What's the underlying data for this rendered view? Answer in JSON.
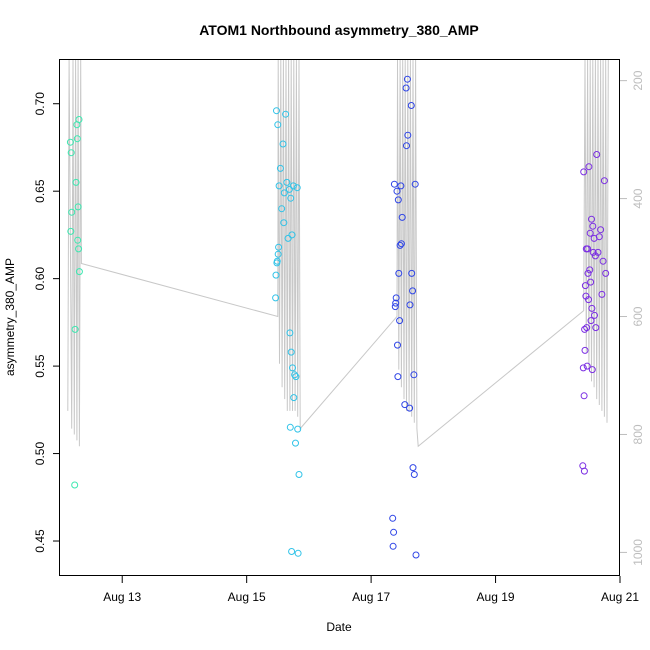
{
  "chart_data": {
    "type": "scatter",
    "title": "ATOM1 Northbound asymmetry_380_AMP",
    "xlabel": "Date",
    "ylabel": "asymmetry_380_AMP",
    "x_unit": "date (2012)",
    "xlim": [
      "2012-08-12",
      "2012-08-21"
    ],
    "x_ticks": [
      "Aug 13",
      "Aug 15",
      "Aug 17",
      "Aug 19",
      "Aug 21"
    ],
    "ylim": [
      0.43,
      0.725
    ],
    "y_ticks": [
      0.45,
      0.5,
      0.55,
      0.6,
      0.65,
      0.7
    ],
    "y2lim": [
      1040,
      165
    ],
    "y2_ticks": [
      200,
      400,
      600,
      800,
      1000
    ],
    "grid": false,
    "legend": "none",
    "series": [
      {
        "color": "#3ce8b0",
        "points": [
          [
            "2012-08-12 04:00",
            0.678
          ],
          [
            "2012-08-12 04:20",
            0.672
          ],
          [
            "2012-08-12 04:30",
            0.638
          ],
          [
            "2012-08-12 04:10",
            0.627
          ],
          [
            "2012-08-12 06:10",
            0.655
          ],
          [
            "2012-08-12 06:30",
            0.688
          ],
          [
            "2012-08-12 06:40",
            0.68
          ],
          [
            "2012-08-12 07:20",
            0.691
          ],
          [
            "2012-08-12 07:00",
            0.641
          ],
          [
            "2012-08-12 06:50",
            0.622
          ],
          [
            "2012-08-12 07:10",
            0.617
          ],
          [
            "2012-08-12 07:30",
            0.604
          ],
          [
            "2012-08-12 05:50",
            0.571
          ],
          [
            "2012-08-12 05:40",
            0.482
          ]
        ]
      },
      {
        "color": "#31c3e8",
        "points": [
          [
            "2012-08-15 11:30",
            0.696
          ],
          [
            "2012-08-15 12:00",
            0.688
          ],
          [
            "2012-08-15 15:00",
            0.694
          ],
          [
            "2012-08-15 14:00",
            0.677
          ],
          [
            "2012-08-15 13:00",
            0.663
          ],
          [
            "2012-08-15 12:30",
            0.653
          ],
          [
            "2012-08-15 15:30",
            0.655
          ],
          [
            "2012-08-15 16:30",
            0.651
          ],
          [
            "2012-08-15 18:00",
            0.653
          ],
          [
            "2012-08-15 19:30",
            0.652
          ],
          [
            "2012-08-15 14:30",
            0.649
          ],
          [
            "2012-08-15 17:00",
            0.646
          ],
          [
            "2012-08-15 13:30",
            0.64
          ],
          [
            "2012-08-15 14:20",
            0.632
          ],
          [
            "2012-08-15 17:30",
            0.625
          ],
          [
            "2012-08-15 16:00",
            0.623
          ],
          [
            "2012-08-15 12:20",
            0.618
          ],
          [
            "2012-08-15 12:10",
            0.614
          ],
          [
            "2012-08-15 11:50",
            0.61
          ],
          [
            "2012-08-15 11:40",
            0.609
          ],
          [
            "2012-08-15 11:20",
            0.602
          ],
          [
            "2012-08-15 11:10",
            0.589
          ],
          [
            "2012-08-15 16:40",
            0.569
          ],
          [
            "2012-08-15 17:10",
            0.558
          ],
          [
            "2012-08-15 17:40",
            0.549
          ],
          [
            "2012-08-15 19:00",
            0.544
          ],
          [
            "2012-08-15 18:30",
            0.545
          ],
          [
            "2012-08-15 18:10",
            0.532
          ],
          [
            "2012-08-15 16:50",
            0.515
          ],
          [
            "2012-08-15 19:40",
            0.514
          ],
          [
            "2012-08-15 18:50",
            0.506
          ],
          [
            "2012-08-15 20:10",
            0.488
          ],
          [
            "2012-08-15 17:20",
            0.444
          ],
          [
            "2012-08-15 19:50",
            0.443
          ]
        ]
      },
      {
        "color": "#2f45e6",
        "points": [
          [
            "2012-08-17 14:00",
            0.714
          ],
          [
            "2012-08-17 13:30",
            0.709
          ],
          [
            "2012-08-17 15:30",
            0.699
          ],
          [
            "2012-08-17 14:10",
            0.682
          ],
          [
            "2012-08-17 13:40",
            0.676
          ],
          [
            "2012-08-17 09:00",
            0.654
          ],
          [
            "2012-08-17 11:30",
            0.653
          ],
          [
            "2012-08-17 17:00",
            0.654
          ],
          [
            "2012-08-17 10:00",
            0.65
          ],
          [
            "2012-08-17 10:30",
            0.645
          ],
          [
            "2012-08-17 12:00",
            0.635
          ],
          [
            "2012-08-17 11:40",
            0.62
          ],
          [
            "2012-08-17 11:10",
            0.619
          ],
          [
            "2012-08-17 10:40",
            0.603
          ],
          [
            "2012-08-17 15:40",
            0.603
          ],
          [
            "2012-08-17 16:00",
            0.593
          ],
          [
            "2012-08-17 09:40",
            0.589
          ],
          [
            "2012-08-17 09:30",
            0.586
          ],
          [
            "2012-08-17 09:20",
            0.584
          ],
          [
            "2012-08-17 15:00",
            0.585
          ],
          [
            "2012-08-17 11:00",
            0.576
          ],
          [
            "2012-08-17 10:10",
            0.562
          ],
          [
            "2012-08-17 10:20",
            0.544
          ],
          [
            "2012-08-17 16:30",
            0.545
          ],
          [
            "2012-08-17 13:00",
            0.528
          ],
          [
            "2012-08-17 14:50",
            0.526
          ],
          [
            "2012-08-17 16:10",
            0.492
          ],
          [
            "2012-08-17 16:40",
            0.488
          ],
          [
            "2012-08-17 08:20",
            0.463
          ],
          [
            "2012-08-17 08:40",
            0.455
          ],
          [
            "2012-08-17 08:30",
            0.447
          ],
          [
            "2012-08-17 17:20",
            0.442
          ]
        ]
      },
      {
        "color": "#7b2ee3",
        "points": [
          [
            "2012-08-20 15:00",
            0.671
          ],
          [
            "2012-08-20 10:00",
            0.661
          ],
          [
            "2012-08-20 12:00",
            0.664
          ],
          [
            "2012-08-20 18:00",
            0.656
          ],
          [
            "2012-08-20 13:00",
            0.634
          ],
          [
            "2012-08-20 13:30",
            0.63
          ],
          [
            "2012-08-20 16:30",
            0.628
          ],
          [
            "2012-08-20 12:30",
            0.626
          ],
          [
            "2012-08-20 16:00",
            0.624
          ],
          [
            "2012-08-20 14:00",
            0.623
          ],
          [
            "2012-08-20 11:00",
            0.617
          ],
          [
            "2012-08-20 11:30",
            0.617
          ],
          [
            "2012-08-20 13:40",
            0.615
          ],
          [
            "2012-08-20 15:30",
            0.615
          ],
          [
            "2012-08-20 14:30",
            0.613
          ],
          [
            "2012-08-20 17:30",
            0.61
          ],
          [
            "2012-08-20 12:20",
            0.605
          ],
          [
            "2012-08-20 18:30",
            0.603
          ],
          [
            "2012-08-20 11:40",
            0.603
          ],
          [
            "2012-08-20 12:40",
            0.598
          ],
          [
            "2012-08-20 10:40",
            0.596
          ],
          [
            "2012-08-20 10:50",
            0.59
          ],
          [
            "2012-08-20 17:00",
            0.591
          ],
          [
            "2012-08-20 11:50",
            0.588
          ],
          [
            "2012-08-20 13:10",
            0.583
          ],
          [
            "2012-08-20 14:10",
            0.579
          ],
          [
            "2012-08-20 12:50",
            0.576
          ],
          [
            "2012-08-20 11:10",
            0.572
          ],
          [
            "2012-08-20 10:20",
            0.571
          ],
          [
            "2012-08-20 14:40",
            0.572
          ],
          [
            "2012-08-20 10:30",
            0.559
          ],
          [
            "2012-08-20 09:50",
            0.549
          ],
          [
            "2012-08-20 11:20",
            0.55
          ],
          [
            "2012-08-20 13:20",
            0.548
          ],
          [
            "2012-08-20 10:10",
            0.533
          ],
          [
            "2012-08-20 09:40",
            0.493
          ],
          [
            "2012-08-20 10:15",
            0.49
          ]
        ]
      }
    ],
    "secondary_line": {
      "color": "#c8c8c8",
      "axis": "right",
      "points": [
        [
          "2012-08-12 03:00",
          760
        ],
        [
          "2012-08-12 03:30",
          140
        ],
        [
          "2012-08-12 04:30",
          790
        ],
        [
          "2012-08-12 05:00",
          140
        ],
        [
          "2012-08-12 05:30",
          800
        ],
        [
          "2012-08-12 06:00",
          140
        ],
        [
          "2012-08-12 06:30",
          810
        ],
        [
          "2012-08-12 07:00",
          140
        ],
        [
          "2012-08-12 07:30",
          820
        ],
        [
          "2012-08-12 08:00",
          140
        ],
        [
          "2012-08-12 08:15",
          510
        ],
        [
          "2012-08-15 12:00",
          600
        ],
        [
          "2012-08-15 12:10",
          140
        ],
        [
          "2012-08-15 12:40",
          680
        ],
        [
          "2012-08-15 13:10",
          140
        ],
        [
          "2012-08-15 13:40",
          720
        ],
        [
          "2012-08-15 14:10",
          140
        ],
        [
          "2012-08-15 14:40",
          740
        ],
        [
          "2012-08-15 15:10",
          140
        ],
        [
          "2012-08-15 15:40",
          760
        ],
        [
          "2012-08-15 16:10",
          140
        ],
        [
          "2012-08-15 16:40",
          760
        ],
        [
          "2012-08-15 17:10",
          140
        ],
        [
          "2012-08-15 17:40",
          760
        ],
        [
          "2012-08-15 18:10",
          140
        ],
        [
          "2012-08-15 18:40",
          760
        ],
        [
          "2012-08-15 19:10",
          140
        ],
        [
          "2012-08-15 19:40",
          770
        ],
        [
          "2012-08-15 20:10",
          140
        ],
        [
          "2012-08-15 20:40",
          790
        ],
        [
          "2012-08-17 10:00",
          600
        ],
        [
          "2012-08-17 10:10",
          140
        ],
        [
          "2012-08-17 10:40",
          690
        ],
        [
          "2012-08-17 11:10",
          140
        ],
        [
          "2012-08-17 11:40",
          720
        ],
        [
          "2012-08-17 12:10",
          140
        ],
        [
          "2012-08-17 12:40",
          740
        ],
        [
          "2012-08-17 13:10",
          140
        ],
        [
          "2012-08-17 13:40",
          760
        ],
        [
          "2012-08-17 14:10",
          140
        ],
        [
          "2012-08-17 14:40",
          760
        ],
        [
          "2012-08-17 15:10",
          140
        ],
        [
          "2012-08-17 15:40",
          770
        ],
        [
          "2012-08-17 16:10",
          140
        ],
        [
          "2012-08-17 16:40",
          780
        ],
        [
          "2012-08-17 17:10",
          140
        ],
        [
          "2012-08-17 17:40",
          790
        ],
        [
          "2012-08-17 18:10",
          820
        ],
        [
          "2012-08-20 10:00",
          590
        ],
        [
          "2012-08-20 10:30",
          140
        ],
        [
          "2012-08-20 11:00",
          660
        ],
        [
          "2012-08-20 11:30",
          140
        ],
        [
          "2012-08-20 12:00",
          690
        ],
        [
          "2012-08-20 12:30",
          140
        ],
        [
          "2012-08-20 13:00",
          710
        ],
        [
          "2012-08-20 13:30",
          140
        ],
        [
          "2012-08-20 14:00",
          720
        ],
        [
          "2012-08-20 14:30",
          140
        ],
        [
          "2012-08-20 15:00",
          740
        ],
        [
          "2012-08-20 15:30",
          140
        ],
        [
          "2012-08-20 16:00",
          750
        ],
        [
          "2012-08-20 16:30",
          140
        ],
        [
          "2012-08-20 17:00",
          760
        ],
        [
          "2012-08-20 17:30",
          140
        ],
        [
          "2012-08-20 18:00",
          770
        ],
        [
          "2012-08-20 18:30",
          140
        ],
        [
          "2012-08-20 19:00",
          780
        ],
        [
          "2012-08-20 19:30",
          140
        ]
      ]
    }
  }
}
